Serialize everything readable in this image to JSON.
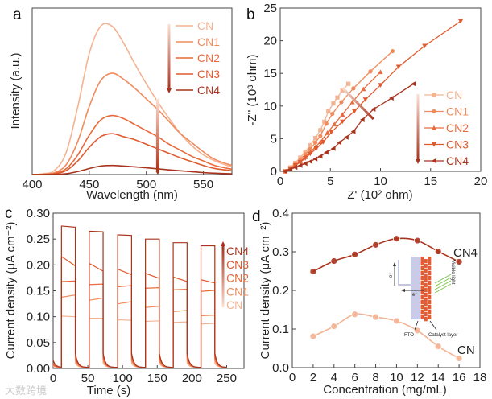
{
  "watermark": "大数跨境",
  "colors": {
    "CN": "#f4b392",
    "CN1": "#ef8b5d",
    "CN2": "#e96a3c",
    "CN3": "#df5a2e",
    "CN4": "#a9341e",
    "axis": "#444444",
    "light": "#77c043",
    "fto": "#c9cbe8",
    "catalyst": "#ea5a2c"
  },
  "chart_data": [
    {
      "panel": "a",
      "type": "line",
      "xlabel": "Wavelength (nm)",
      "ylabel": "Intensity (a.u.)",
      "xlim": [
        400,
        575
      ],
      "ylim": [
        0,
        1.1
      ],
      "xticks": [
        400,
        450,
        500,
        550
      ],
      "x": [
        400,
        410,
        420,
        430,
        440,
        450,
        460,
        470,
        480,
        490,
        500,
        510,
        520,
        530,
        540,
        550,
        560,
        575
      ],
      "series": [
        {
          "name": "CN",
          "values": [
            0,
            0.005,
            0.03,
            0.15,
            0.45,
            0.8,
            0.98,
            0.98,
            0.87,
            0.73,
            0.6,
            0.48,
            0.37,
            0.27,
            0.19,
            0.13,
            0.09,
            0.05
          ]
        },
        {
          "name": "CN1",
          "values": [
            0,
            0.003,
            0.013,
            0.067,
            0.22,
            0.45,
            0.62,
            0.67,
            0.63,
            0.57,
            0.5,
            0.43,
            0.35,
            0.27,
            0.21,
            0.15,
            0.1,
            0.06
          ]
        },
        {
          "name": "CN2",
          "values": [
            0,
            0.002,
            0.008,
            0.04,
            0.13,
            0.26,
            0.36,
            0.39,
            0.37,
            0.33,
            0.29,
            0.25,
            0.2,
            0.16,
            0.12,
            0.09,
            0.06,
            0.035
          ]
        },
        {
          "name": "CN3",
          "values": [
            0,
            0.001,
            0.005,
            0.027,
            0.09,
            0.18,
            0.25,
            0.27,
            0.25,
            0.23,
            0.2,
            0.17,
            0.14,
            0.11,
            0.085,
            0.06,
            0.04,
            0.025
          ]
        },
        {
          "name": "CN4",
          "values": [
            0,
            0,
            0.001,
            0.006,
            0.02,
            0.04,
            0.056,
            0.06,
            0.056,
            0.051,
            0.045,
            0.038,
            0.031,
            0.025,
            0.019,
            0.013,
            0.009,
            0.005
          ]
        }
      ],
      "annotation_arrow": {
        "x": 510,
        "from": 0.5,
        "to": 0
      },
      "legend": "top-right"
    },
    {
      "panel": "b",
      "type": "scatter",
      "xlabel": "Z' (10² ohm)",
      "ylabel": "-Z'' (10³ ohm)",
      "xlim": [
        0,
        20
      ],
      "ylim": [
        0,
        25
      ],
      "xticks": [
        0,
        5,
        10,
        15,
        20
      ],
      "yticks": [
        0,
        5,
        10,
        15,
        20,
        25
      ],
      "series": [
        {
          "name": "CN",
          "marker": "square",
          "points": [
            [
              0.5,
              0
            ],
            [
              1,
              0.6
            ],
            [
              1.5,
              1.3
            ],
            [
              2,
              2.1
            ],
            [
              2.5,
              3
            ],
            [
              3,
              4
            ],
            [
              3.5,
              5.1
            ],
            [
              4,
              6.3
            ],
            [
              4.4,
              7.6
            ],
            [
              4.8,
              9.2
            ],
            [
              5.3,
              10.4
            ],
            [
              5.7,
              11.3
            ],
            [
              6.2,
              12.4
            ],
            [
              6.8,
              13.4
            ]
          ]
        },
        {
          "name": "CN1",
          "marker": "circle",
          "points": [
            [
              0.5,
              0
            ],
            [
              1,
              0.5
            ],
            [
              1.5,
              1.1
            ],
            [
              2,
              1.8
            ],
            [
              2.5,
              2.6
            ],
            [
              3,
              3.4
            ],
            [
              3.5,
              4.4
            ],
            [
              4,
              5.4
            ],
            [
              4.6,
              7.3
            ],
            [
              5.2,
              8.8
            ],
            [
              6.1,
              10.6
            ],
            [
              7.3,
              12.7
            ],
            [
              9,
              15.3
            ],
            [
              11.2,
              18.4
            ]
          ]
        },
        {
          "name": "CN2",
          "marker": "triangle-up",
          "points": [
            [
              0.5,
              0
            ],
            [
              1,
              0.4
            ],
            [
              1.5,
              0.9
            ],
            [
              2,
              1.5
            ],
            [
              2.5,
              2.2
            ],
            [
              3,
              2.9
            ],
            [
              3.5,
              3.7
            ],
            [
              4,
              4.5
            ],
            [
              4.7,
              5.9
            ],
            [
              5.4,
              7.2
            ],
            [
              6.2,
              8.7
            ],
            [
              7.2,
              10.6
            ],
            [
              8.3,
              12.6
            ],
            [
              10,
              15.2
            ]
          ]
        },
        {
          "name": "CN3",
          "marker": "triangle-down",
          "points": [
            [
              0.5,
              0
            ],
            [
              1,
              0.4
            ],
            [
              1.5,
              0.9
            ],
            [
              2,
              1.4
            ],
            [
              2.5,
              2
            ],
            [
              3,
              2.7
            ],
            [
              3.6,
              3.5
            ],
            [
              4.3,
              4.5
            ],
            [
              5.1,
              6
            ],
            [
              6.2,
              7.6
            ],
            [
              7.4,
              9.2
            ],
            [
              8.5,
              11
            ],
            [
              10,
              13.2
            ],
            [
              11.8,
              16
            ],
            [
              14.4,
              19.2
            ],
            [
              18,
              23
            ]
          ]
        },
        {
          "name": "CN4",
          "marker": "triangle-left",
          "points": [
            [
              0.5,
              0
            ],
            [
              1,
              0.3
            ],
            [
              1.5,
              0.6
            ],
            [
              2,
              0.9
            ],
            [
              2.5,
              1.2
            ],
            [
              3,
              1.5
            ],
            [
              3.5,
              1.9
            ],
            [
              4,
              2.3
            ],
            [
              4.6,
              2.9
            ],
            [
              5.3,
              3.5
            ],
            [
              5.9,
              4.4
            ],
            [
              6.6,
              5.2
            ],
            [
              7.3,
              6.1
            ],
            [
              8.2,
              7.9
            ],
            [
              9.3,
              9.5
            ],
            [
              11.1,
              11.2
            ],
            [
              13.3,
              13.4
            ]
          ]
        }
      ],
      "annotation_arrow": {
        "from": [
          6.2,
          12.8
        ],
        "to": [
          9.3,
          8
        ]
      },
      "legend": "bottom-right"
    },
    {
      "panel": "c",
      "type": "line",
      "xlabel": "Time (s)",
      "ylabel": "Current density (μA cm⁻²)",
      "xlim": [
        0,
        275
      ],
      "ylim": [
        0,
        0.3
      ],
      "xticks": [
        0,
        50,
        100,
        150,
        200,
        250
      ],
      "yticks": [
        "0.00",
        "0.05",
        "0.10",
        "0.15",
        "0.20",
        "0.25",
        "0.30"
      ],
      "light_on": [
        [
          12,
          32
        ],
        [
          52,
          72
        ],
        [
          93,
          113
        ],
        [
          133,
          153
        ],
        [
          173,
          193
        ],
        [
          213,
          233
        ]
      ],
      "series": [
        {
          "name": "CN",
          "start": 0.004,
          "dark_after": 0.01,
          "on_levels": [
            [
              0.101,
              0.1
            ],
            [
              0.097,
              0.097
            ],
            [
              0.094,
              0.093
            ],
            [
              0.091,
              0.092
            ],
            [
              0.089,
              0.09
            ],
            [
              0.086,
              0.087
            ]
          ]
        },
        {
          "name": "CN1",
          "start": 0.006,
          "dark_after": 0.016,
          "on_levels": [
            [
              0.138,
              0.142
            ],
            [
              0.132,
              0.136
            ],
            [
              0.125,
              0.129
            ],
            [
              0.118,
              0.12
            ],
            [
              0.11,
              0.112
            ],
            [
              0.102,
              0.103
            ]
          ]
        },
        {
          "name": "CN2",
          "start": 0.008,
          "dark_after": 0.021,
          "on_levels": [
            [
              0.168,
              0.169
            ],
            [
              0.162,
              0.163
            ],
            [
              0.158,
              0.16
            ],
            [
              0.155,
              0.156
            ],
            [
              0.152,
              0.153
            ],
            [
              0.149,
              0.151
            ]
          ]
        },
        {
          "name": "CN3",
          "start": 0.01,
          "dark_after": 0.026,
          "on_levels": [
            [
              0.215,
              0.198
            ],
            [
              0.202,
              0.188
            ],
            [
              0.191,
              0.181
            ],
            [
              0.183,
              0.174
            ],
            [
              0.176,
              0.168
            ],
            [
              0.171,
              0.165
            ]
          ]
        },
        {
          "name": "CN4",
          "start": 0.016,
          "dark_after": 0.03,
          "on_levels": [
            [
              0.275,
              0.273
            ],
            [
              0.265,
              0.264
            ],
            [
              0.258,
              0.257
            ],
            [
              0.25,
              0.25
            ],
            [
              0.243,
              0.243
            ],
            [
              0.237,
              0.237
            ]
          ]
        }
      ],
      "legend": "right"
    },
    {
      "panel": "d",
      "type": "line",
      "xlabel": "Concentration (mg/mL)",
      "ylabel": "Current density (μA cm⁻²)",
      "xlim": [
        0,
        18
      ],
      "ylim": [
        0,
        0.4
      ],
      "xticks": [
        0,
        2,
        4,
        6,
        8,
        10,
        12,
        14,
        16,
        18
      ],
      "yticks": [
        "0.0",
        "0.1",
        "0.2",
        "0.3",
        "0.4"
      ],
      "x": [
        2,
        4,
        6,
        8,
        10,
        12,
        14,
        16
      ],
      "series": [
        {
          "name": "CN4",
          "values": [
            0.249,
            0.276,
            0.293,
            0.318,
            0.334,
            0.329,
            0.301,
            0.274
          ]
        },
        {
          "name": "CN",
          "values": [
            0.081,
            0.107,
            0.138,
            0.131,
            0.121,
            0.096,
            0.055,
            0.024
          ]
        }
      ],
      "inset": {
        "electron_1": "e⁻",
        "electron_2": "e⁻",
        "light_label": "Visible light",
        "fto_label": "FTO",
        "catalyst_label": "Catalyst layer"
      }
    }
  ]
}
